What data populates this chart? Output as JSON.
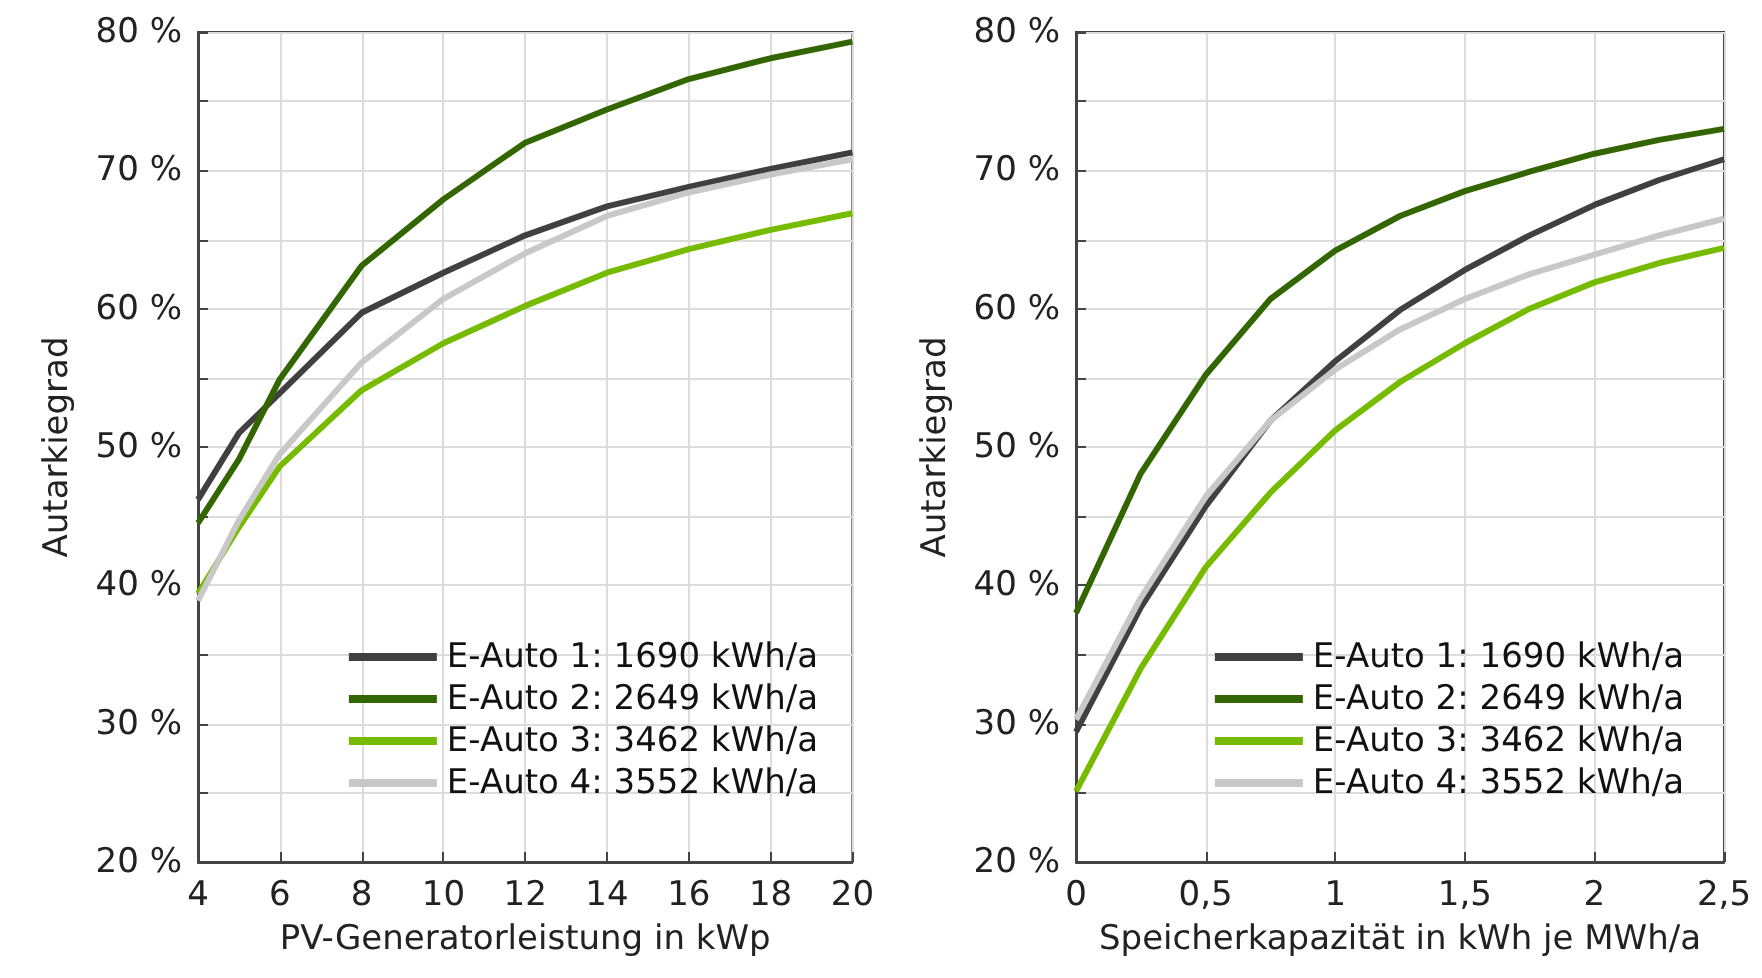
{
  "chart_data": [
    {
      "type": "line",
      "xlabel": "PV-Generatorleistung in kWp",
      "ylabel": "Autarkiegrad",
      "x": [
        4,
        5,
        6,
        8,
        10,
        12,
        14,
        16,
        18,
        20
      ],
      "series": [
        {
          "name": "E-Auto 1: 1690 kWh/a",
          "color": "#404040",
          "values": [
            46.2,
            51.0,
            53.9,
            59.7,
            62.6,
            65.3,
            67.4,
            68.8,
            70.1,
            71.3
          ]
        },
        {
          "name": "E-Auto 2: 2649 kWh/a",
          "color": "#336600",
          "values": [
            44.5,
            49.1,
            54.9,
            63.1,
            67.9,
            72.0,
            74.4,
            76.6,
            78.1,
            79.3
          ]
        },
        {
          "name": "E-Auto 3: 3462 kWh/a",
          "color": "#77bb00",
          "values": [
            39.4,
            44.2,
            48.6,
            54.1,
            57.5,
            60.2,
            62.6,
            64.3,
            65.7,
            66.9
          ]
        },
        {
          "name": "E-Auto 4: 3552 kWh/a",
          "color": "#c8c8c8",
          "values": [
            38.9,
            44.7,
            49.5,
            56.1,
            60.7,
            64.0,
            66.7,
            68.4,
            69.7,
            70.8
          ]
        }
      ],
      "xlim": [
        4,
        20
      ],
      "xticks": [
        4,
        6,
        8,
        10,
        12,
        14,
        16,
        18,
        20
      ],
      "ylim": [
        20,
        80
      ],
      "yticks": [
        {
          "value": 20,
          "label": "20 %"
        },
        {
          "value": 25,
          "label": null
        },
        {
          "value": 30,
          "label": "30 %"
        },
        {
          "value": 35,
          "label": null
        },
        {
          "value": 40,
          "label": "40 %"
        },
        {
          "value": 45,
          "label": null
        },
        {
          "value": 50,
          "label": "50 %"
        },
        {
          "value": 55,
          "label": null
        },
        {
          "value": 60,
          "label": "60 %"
        },
        {
          "value": 65,
          "label": null
        },
        {
          "value": 70,
          "label": "70 %"
        },
        {
          "value": 75,
          "label": null
        },
        {
          "value": 80,
          "label": "80 %"
        }
      ],
      "grid": true,
      "legend": "bottom right",
      "marker": "none",
      "line_style": "solid"
    },
    {
      "type": "line",
      "xlabel": "Speicherkapazität in kWh je MWh/a",
      "ylabel": "Autarkiegrad",
      "x": [
        0,
        0.25,
        0.5,
        0.75,
        1,
        1.25,
        1.5,
        1.75,
        2,
        2.25,
        2.5
      ],
      "series": [
        {
          "name": "E-Auto 1: 1690 kWh/a",
          "color": "#404040",
          "values": [
            29.4,
            38.4,
            45.7,
            51.9,
            56.2,
            59.9,
            62.8,
            65.3,
            67.5,
            69.3,
            70.8
          ]
        },
        {
          "name": "E-Auto 2: 2649 kWh/a",
          "color": "#336600",
          "values": [
            38.0,
            48.1,
            55.2,
            60.7,
            64.2,
            66.7,
            68.5,
            69.9,
            71.2,
            72.2,
            73.0
          ]
        },
        {
          "name": "E-Auto 3: 3462 kWh/a",
          "color": "#77bb00",
          "values": [
            25.1,
            34.0,
            41.3,
            46.7,
            51.2,
            54.7,
            57.5,
            60.0,
            61.9,
            63.3,
            64.4
          ]
        },
        {
          "name": "E-Auto 4: 3552 kWh/a",
          "color": "#c8c8c8",
          "values": [
            30.3,
            39.1,
            46.4,
            51.9,
            55.6,
            58.5,
            60.7,
            62.5,
            63.9,
            65.3,
            66.5
          ]
        }
      ],
      "xlim": [
        0,
        2.5
      ],
      "xticks": [
        0,
        {
          "value": 0.5,
          "label": "0,5"
        },
        1,
        {
          "value": 1.5,
          "label": "1,5"
        },
        2,
        {
          "value": 2.5,
          "label": "2,5"
        }
      ],
      "ylim": [
        20,
        80
      ],
      "yticks": [
        {
          "value": 20,
          "label": "20 %"
        },
        {
          "value": 25,
          "label": null
        },
        {
          "value": 30,
          "label": "30 %"
        },
        {
          "value": 35,
          "label": null
        },
        {
          "value": 40,
          "label": "40 %"
        },
        {
          "value": 45,
          "label": null
        },
        {
          "value": 50,
          "label": "50 %"
        },
        {
          "value": 55,
          "label": null
        },
        {
          "value": 60,
          "label": "60 %"
        },
        {
          "value": 65,
          "label": null
        },
        {
          "value": 70,
          "label": "70 %"
        },
        {
          "value": 75,
          "label": null
        },
        {
          "value": 80,
          "label": "80 %"
        }
      ],
      "grid": true,
      "legend": "bottom right",
      "marker": "none",
      "line_style": "solid"
    }
  ]
}
